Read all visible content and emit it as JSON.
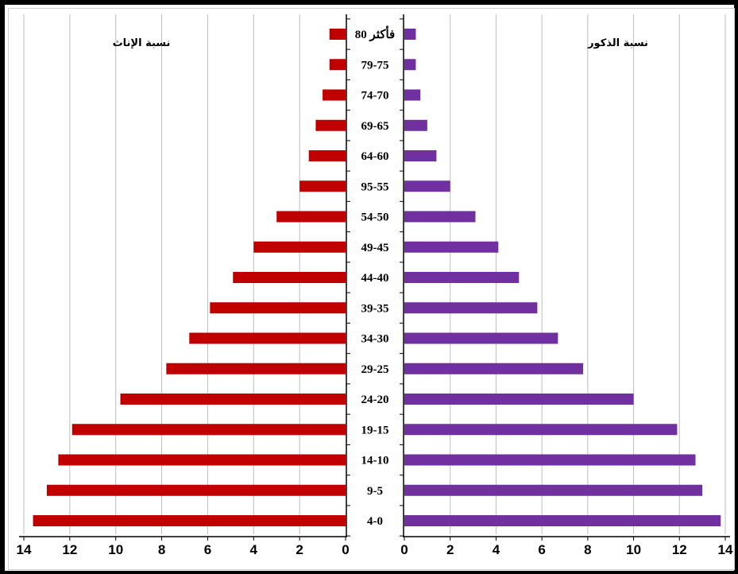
{
  "chart_data": [
    {
      "type": "bar",
      "orientation": "horizontal",
      "side": "left",
      "title": "نسبة الإناث",
      "categories": [
        "4-0",
        "9-5",
        "14-10",
        "19-15",
        "24-20",
        "29-25",
        "34-30",
        "39-35",
        "44-40",
        "49-45",
        "54-50",
        "95-55",
        "64-60",
        "69-65",
        "74-70",
        "79-75",
        "80 فأكثر"
      ],
      "values": [
        13.6,
        13.0,
        12.5,
        11.9,
        9.8,
        7.8,
        6.8,
        5.9,
        4.9,
        4.0,
        3.0,
        2.0,
        1.6,
        1.3,
        1.0,
        0.7,
        0.7
      ],
      "xlim": [
        14,
        0
      ],
      "xticks": [
        "14",
        "12",
        "10",
        "8",
        "6",
        "4",
        "2",
        "0"
      ],
      "color": "#c00000",
      "grid": true
    },
    {
      "type": "bar",
      "orientation": "horizontal",
      "side": "right",
      "title": "نسبة الذكور",
      "categories": [
        "4-0",
        "9-5",
        "14-10",
        "19-15",
        "24-20",
        "29-25",
        "34-30",
        "39-35",
        "44-40",
        "49-45",
        "54-50",
        "95-55",
        "64-60",
        "69-65",
        "74-70",
        "79-75",
        "80 فأكثر"
      ],
      "values": [
        13.8,
        13.0,
        12.7,
        11.9,
        10.0,
        7.8,
        6.7,
        5.8,
        5.0,
        4.1,
        3.1,
        2.0,
        1.4,
        1.0,
        0.7,
        0.5,
        0.5
      ],
      "xlim": [
        0,
        14
      ],
      "xticks": [
        "0",
        "2",
        "4",
        "6",
        "8",
        "10",
        "12",
        "14"
      ],
      "color": "#7030a0",
      "grid": true
    }
  ],
  "colors": {
    "female": "#c00000",
    "male": "#7030a0",
    "frame": "#000000",
    "grid": "#bdbdbd"
  }
}
